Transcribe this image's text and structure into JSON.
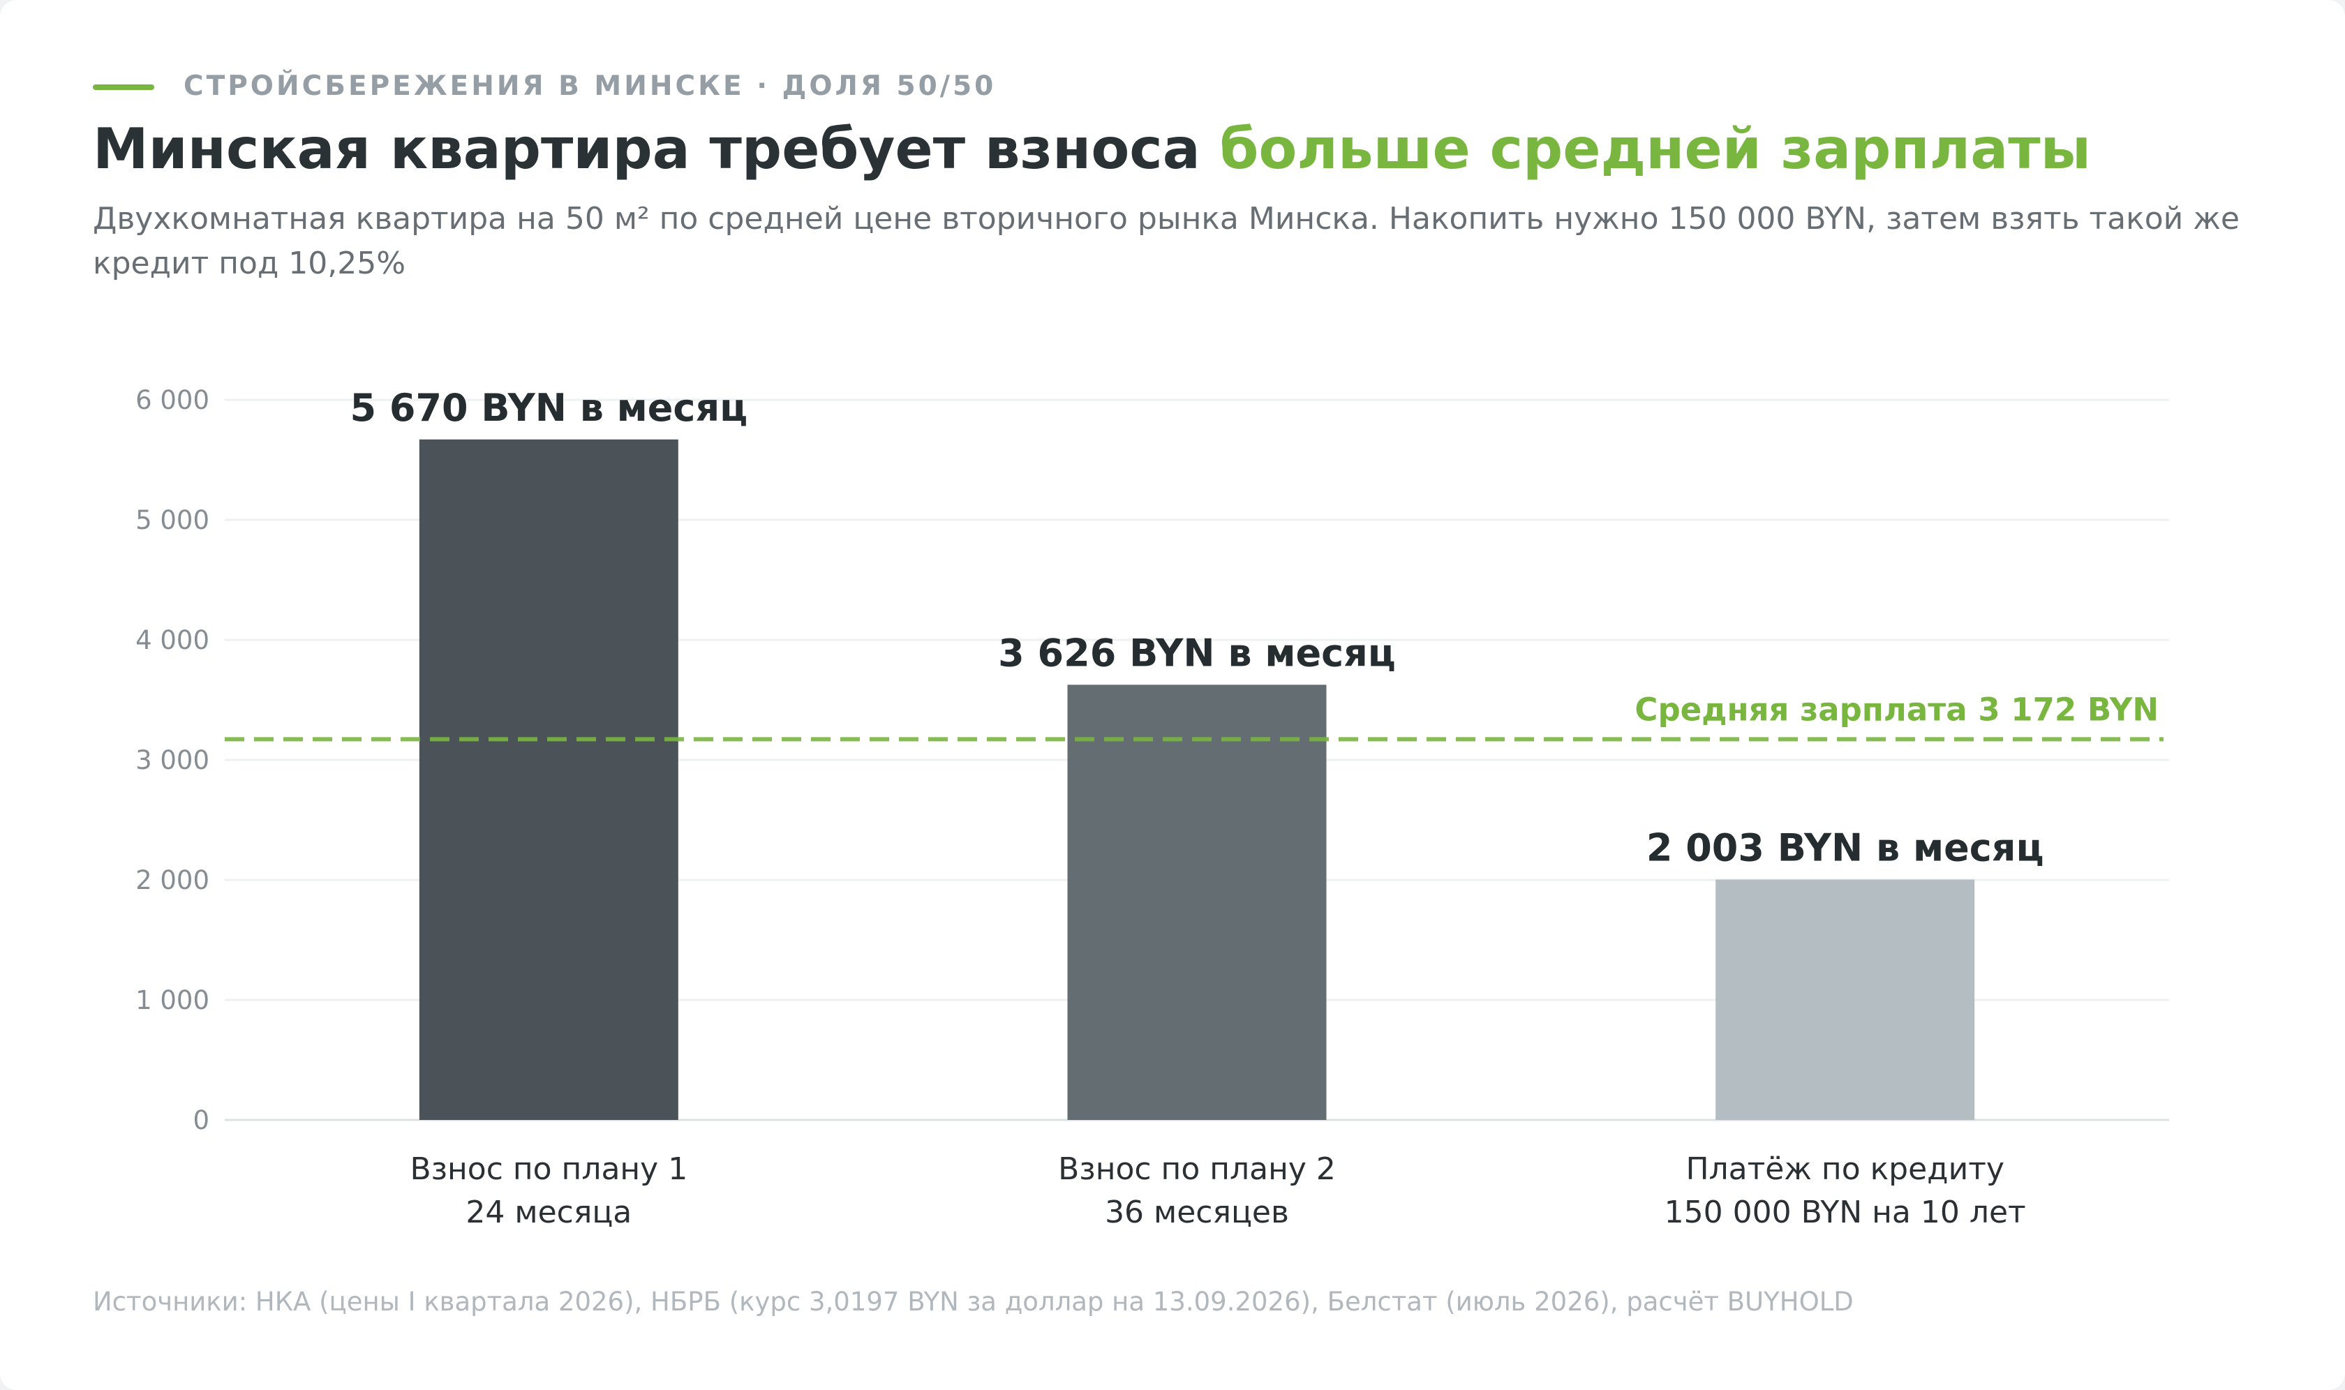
{
  "colors": {
    "accent": "#79b640",
    "bar1": "#4b5358",
    "bar2": "#636d72",
    "bar3": "#b3bdc2"
  },
  "header": {
    "kicker": "СТРОЙСБЕРЕЖЕНИЯ В МИНСКЕ · ДОЛЯ 50/50",
    "title_main": "Минская квартира требует взноса",
    "title_accent": "больше средней зарплаты",
    "subtitle": "Двухкомнатная квартира на 50 м² по средней цене вторичного рынка Минска. Накопить нужно 150 000 BYN, затем взять такой же кредит под 10,25%"
  },
  "chart_data": {
    "type": "bar",
    "categories": [
      [
        "Взнос по плану 1",
        "24 месяца"
      ],
      [
        "Взнос по плану 2",
        "36 месяцев"
      ],
      [
        "Платёж по кредиту",
        "150 000 BYN на 10 лет"
      ]
    ],
    "values": [
      5670,
      3626,
      2003
    ],
    "data_labels": [
      "5 670 BYN в месяц",
      "3 626 BYN в месяц",
      "2 003 BYN в месяц"
    ],
    "ylim": [
      0,
      6000
    ],
    "yticks": [
      0,
      1000,
      2000,
      3000,
      4000,
      5000,
      6000
    ],
    "ytick_labels": [
      "0",
      "1 000",
      "2 000",
      "3 000",
      "4 000",
      "5 000",
      "6 000"
    ],
    "grid": true,
    "reference_line": {
      "value": 3172,
      "label": "Средняя зарплата 3 172 BYN",
      "style": "dashed"
    }
  },
  "footer": {
    "source": "Источники: НКА (цены I квартала 2026), НБРБ (курс 3,0197 BYN за доллар на 13.09.2026), Белстат (июль 2026), расчёт BUYHOLD"
  }
}
